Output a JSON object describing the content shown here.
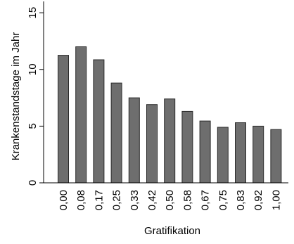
{
  "chart_data": {
    "type": "bar",
    "title": "",
    "xlabel": "Gratifikation",
    "ylabel": "Krankenstandstage im Jahr",
    "categories": [
      "0,00",
      "0,08",
      "0,17",
      "0,25",
      "0,33",
      "0,42",
      "0,50",
      "0,58",
      "0,67",
      "0,75",
      "0,83",
      "0,92",
      "1,00"
    ],
    "values": [
      11.25,
      12.0,
      10.85,
      8.8,
      7.5,
      6.9,
      7.4,
      6.3,
      5.45,
      4.9,
      5.3,
      5.0,
      4.7
    ],
    "ylim": [
      0,
      16
    ],
    "yticks": [
      0,
      5,
      10,
      15
    ],
    "ytick_labels": [
      "0",
      "5",
      "10",
      "15"
    ],
    "grid": false,
    "bar_color": "#6e6e6e",
    "bar_edge_color": "#2a2a2a"
  }
}
